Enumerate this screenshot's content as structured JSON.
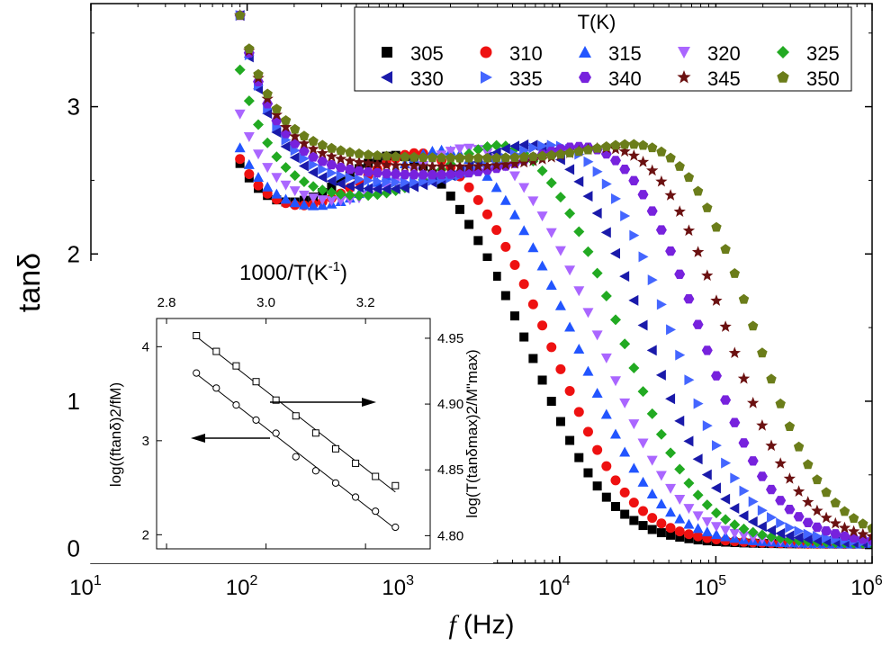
{
  "chart_data": [
    {
      "type": "scatter",
      "title": "",
      "xlabel": "f (Hz)",
      "xlabel_italic": "f",
      "xlabel_unit": "(Hz)",
      "ylabel": "tanδ",
      "xscale": "log",
      "xlim": [
        10,
        1000000
      ],
      "ylim": [
        -0.1,
        3.7
      ],
      "x_ticks": [
        10,
        100,
        1000,
        10000,
        100000,
        1000000
      ],
      "x_tick_bases": [
        "10",
        "10",
        "10",
        "10",
        "10",
        "10"
      ],
      "x_tick_exps": [
        "1",
        "2",
        "3",
        "4",
        "5",
        "6"
      ],
      "y_ticks": [
        0,
        1,
        2,
        3
      ],
      "y_tick_labels": [
        "0",
        "1",
        "2",
        "3"
      ],
      "legend": {
        "title": "T(K)",
        "placement": "top-right"
      },
      "series": [
        {
          "name": "305",
          "marker": "square",
          "color": "#000000",
          "low_plateau": 2.6,
          "peak_f": 1000,
          "peak_h": 2.76,
          "trough_f": 3500,
          "trough_h": 2.2,
          "relax_f": 8000
        },
        {
          "name": "310",
          "marker": "circle",
          "color": "#ee1111",
          "low_plateau": 2.64,
          "peak_f": 1400,
          "peak_h": 2.78,
          "trough_f": 4000,
          "trough_h": 2.24,
          "relax_f": 11000
        },
        {
          "name": "315",
          "marker": "triangle-up",
          "color": "#2255ff",
          "low_plateau": 2.72,
          "peak_f": 2000,
          "peak_h": 2.8,
          "trough_f": 5000,
          "trough_h": 2.28,
          "relax_f": 16000
        },
        {
          "name": "320",
          "marker": "triangle-down",
          "color": "#aa66ff",
          "low_plateau": 2.95,
          "peak_f": 3000,
          "peak_h": 2.82,
          "trough_f": 6500,
          "trough_h": 2.34,
          "relax_f": 22000
        },
        {
          "name": "325",
          "marker": "diamond",
          "color": "#22aa22",
          "low_plateau": 3.25,
          "peak_f": 5000,
          "peak_h": 2.86,
          "trough_f": 9000,
          "trough_h": 2.4,
          "relax_f": 30000
        },
        {
          "name": "330",
          "marker": "triangle-left",
          "color": "#1a1aaa",
          "low_plateau": 3.62,
          "peak_f": 8000,
          "peak_h": 2.88,
          "trough_f": 13000,
          "trough_h": 2.46,
          "relax_f": 42000
        },
        {
          "name": "335",
          "marker": "triangle-right",
          "color": "#4466ff",
          "low_plateau": 3.62,
          "peak_f": 12000,
          "peak_h": 2.88,
          "trough_f": 19000,
          "trough_h": 2.52,
          "relax_f": 60000
        },
        {
          "name": "340",
          "marker": "hexagon",
          "color": "#7722dd",
          "low_plateau": 3.62,
          "peak_f": 20000,
          "peak_h": 2.88,
          "trough_f": 28000,
          "trough_h": 2.58,
          "relax_f": 90000
        },
        {
          "name": "345",
          "marker": "star",
          "color": "#6b1111",
          "low_plateau": 3.62,
          "peak_f": 33000,
          "peak_h": 2.88,
          "trough_f": 42000,
          "trough_h": 2.64,
          "relax_f": 130000
        },
        {
          "name": "350",
          "marker": "pentagon",
          "color": "#6b7d1a",
          "low_plateau": 3.62,
          "peak_f": 55000,
          "peak_h": 2.92,
          "trough_f": 60000,
          "trough_h": 2.7,
          "relax_f": 190000
        }
      ]
    },
    {
      "type": "scatter",
      "role": "inset",
      "title": "",
      "xlabel": "1000/T(K-1)",
      "xlabel_main": "1000/T(K",
      "xlabel_sup": "-1",
      "xlabel_end": ")",
      "xlim": [
        2.78,
        3.33
      ],
      "x_ticks": [
        2.8,
        3.0,
        3.2
      ],
      "x_tick_labels": [
        "2.8",
        "3.0",
        "3.2"
      ],
      "ylabel_left": "log((ftanδ)2/fM)",
      "ylabel_right": "log(T(tanδmax)2/M\"max)",
      "ylim_left": [
        1.85,
        4.3
      ],
      "ylim_right": [
        4.79,
        4.965
      ],
      "y_ticks_left": [
        2,
        3,
        4
      ],
      "y_tick_labels_left": [
        "2",
        "3",
        "4"
      ],
      "y_ticks_right": [
        4.8,
        4.85,
        4.9,
        4.95
      ],
      "y_tick_labels_right": [
        "4.80",
        "4.85",
        "4.90",
        "4.95"
      ],
      "series": [
        {
          "name": "log((ftanδ)2/fM)",
          "axis": "left",
          "marker": "circle-open",
          "arrow": "left",
          "x": [
            2.86,
            2.9,
            2.94,
            2.98,
            3.02,
            3.06,
            3.1,
            3.14,
            3.18,
            3.22,
            3.26
          ],
          "y": [
            3.72,
            3.56,
            3.38,
            3.22,
            3.08,
            2.83,
            2.68,
            2.55,
            2.4,
            2.25,
            2.08
          ]
        },
        {
          "name": "log(T(tanδmax)2/M\"max)",
          "axis": "right",
          "marker": "square-open",
          "arrow": "right",
          "x": [
            2.86,
            2.9,
            2.94,
            2.98,
            3.02,
            3.06,
            3.1,
            3.14,
            3.18,
            3.22,
            3.26
          ],
          "y": [
            4.952,
            4.94,
            4.929,
            4.917,
            4.903,
            4.891,
            4.878,
            4.866,
            4.855,
            4.845,
            4.838
          ]
        }
      ]
    }
  ]
}
